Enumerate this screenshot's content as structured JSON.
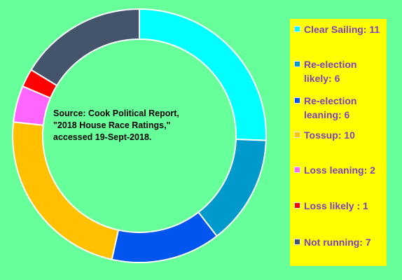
{
  "chart_data": {
    "type": "pie",
    "subtype": "donut",
    "categories": [
      "Clear Sailing",
      "Re-election likely",
      "Re-election leaning",
      "Tossup",
      "Loss leaning",
      "Loss likely",
      "Not running"
    ],
    "values": [
      11,
      6,
      6,
      10,
      2,
      1,
      7
    ],
    "colors": [
      "#00FFFF",
      "#0099CC",
      "#0055EE",
      "#FFC000",
      "#FF66FF",
      "#FF0000",
      "#44546A"
    ],
    "legend": {
      "position": "right",
      "labels": [
        "Clear Sailing: 11",
        "Re-election likely: 6",
        "Re-election leaning: 6",
        "Tossup: 10",
        "Loss leaning: 2",
        "Loss likely : 1",
        "Not running: 7"
      ]
    },
    "annotation": [
      "Source: Cook Political Report,",
      "\"2018 House Race Ratings,\"",
      "accessed 19-Sept-2018."
    ]
  },
  "colors": {
    "background": "#66FF99",
    "legend_background": "#FFFF00",
    "legend_text": "#7F3FBF",
    "slice_border": "#FFFFFF"
  }
}
